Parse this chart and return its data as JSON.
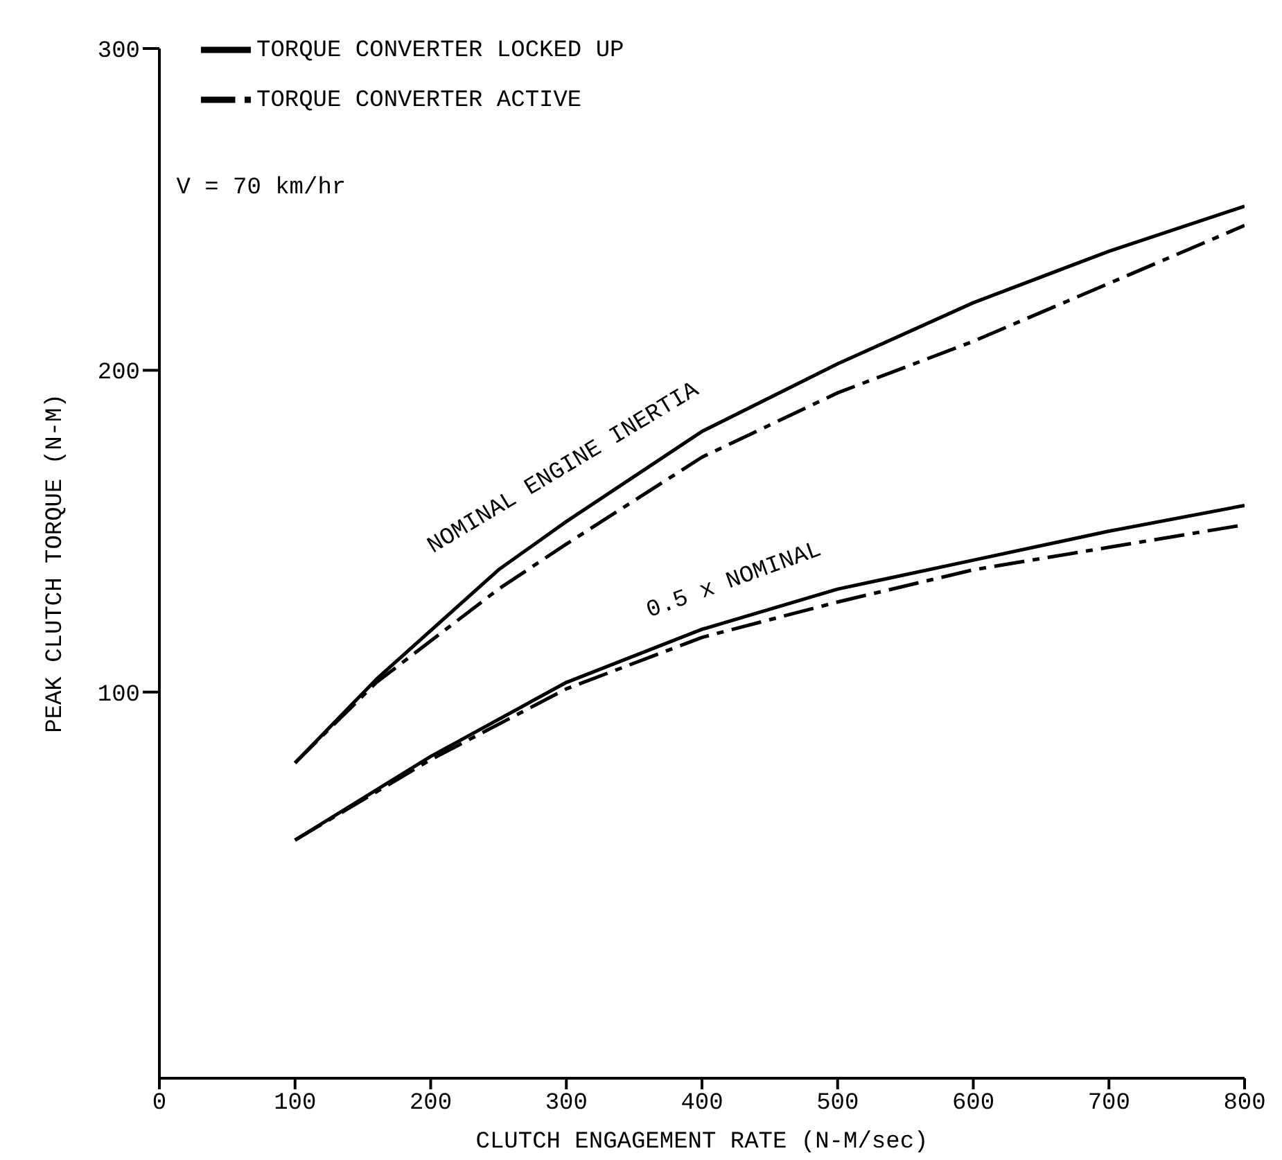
{
  "chart_data": {
    "type": "line",
    "xlabel": "CLUTCH ENGAGEMENT RATE (N-M/sec)",
    "ylabel": "PEAK CLUTCH TORQUE (N-M)",
    "xlim": [
      0,
      800
    ],
    "xticks": [
      0,
      100,
      200,
      300,
      400,
      500,
      600,
      700,
      800
    ],
    "ylim": [
      -20,
      300
    ],
    "yticks": [
      100,
      200,
      300
    ],
    "grid": false,
    "legend": "top",
    "marker": "none",
    "series": [
      {
        "name": "TORQUE CONVERTER LOCKED UP",
        "color": "#000000",
        "line_style": "solid",
        "x": [
          100,
          160,
          250,
          300,
          400,
          500,
          600,
          700,
          800
        ],
        "values": [
          78,
          104,
          138,
          153,
          181,
          202,
          221,
          237,
          251
        ]
      },
      {
        "name": "TORQUE CONVERTER ACTIVE",
        "color": "#000000",
        "line_style": "dashed",
        "x": [
          100,
          160,
          250,
          300,
          400,
          500,
          600,
          700,
          800
        ],
        "values": [
          78,
          103,
          132,
          146,
          173,
          193,
          209,
          227,
          245
        ]
      },
      {
        "color": "#000000",
        "line_style": "solid",
        "x": [
          100,
          200,
          300,
          400,
          500,
          600,
          700,
          800
        ],
        "values": [
          54,
          80,
          103,
          119.5,
          132,
          141,
          150,
          158
        ]
      },
      {
        "color": "#000000",
        "line_style": "dashed",
        "x": [
          100,
          200,
          300,
          400,
          500,
          600,
          700,
          800
        ],
        "values": [
          54,
          79,
          101,
          117,
          128,
          138,
          145,
          152
        ]
      }
    ],
    "annotations": [
      "V = 70 km/hr",
      "NOMINAL ENGINE INERTIA",
      "0.5 x NOMINAL"
    ]
  }
}
